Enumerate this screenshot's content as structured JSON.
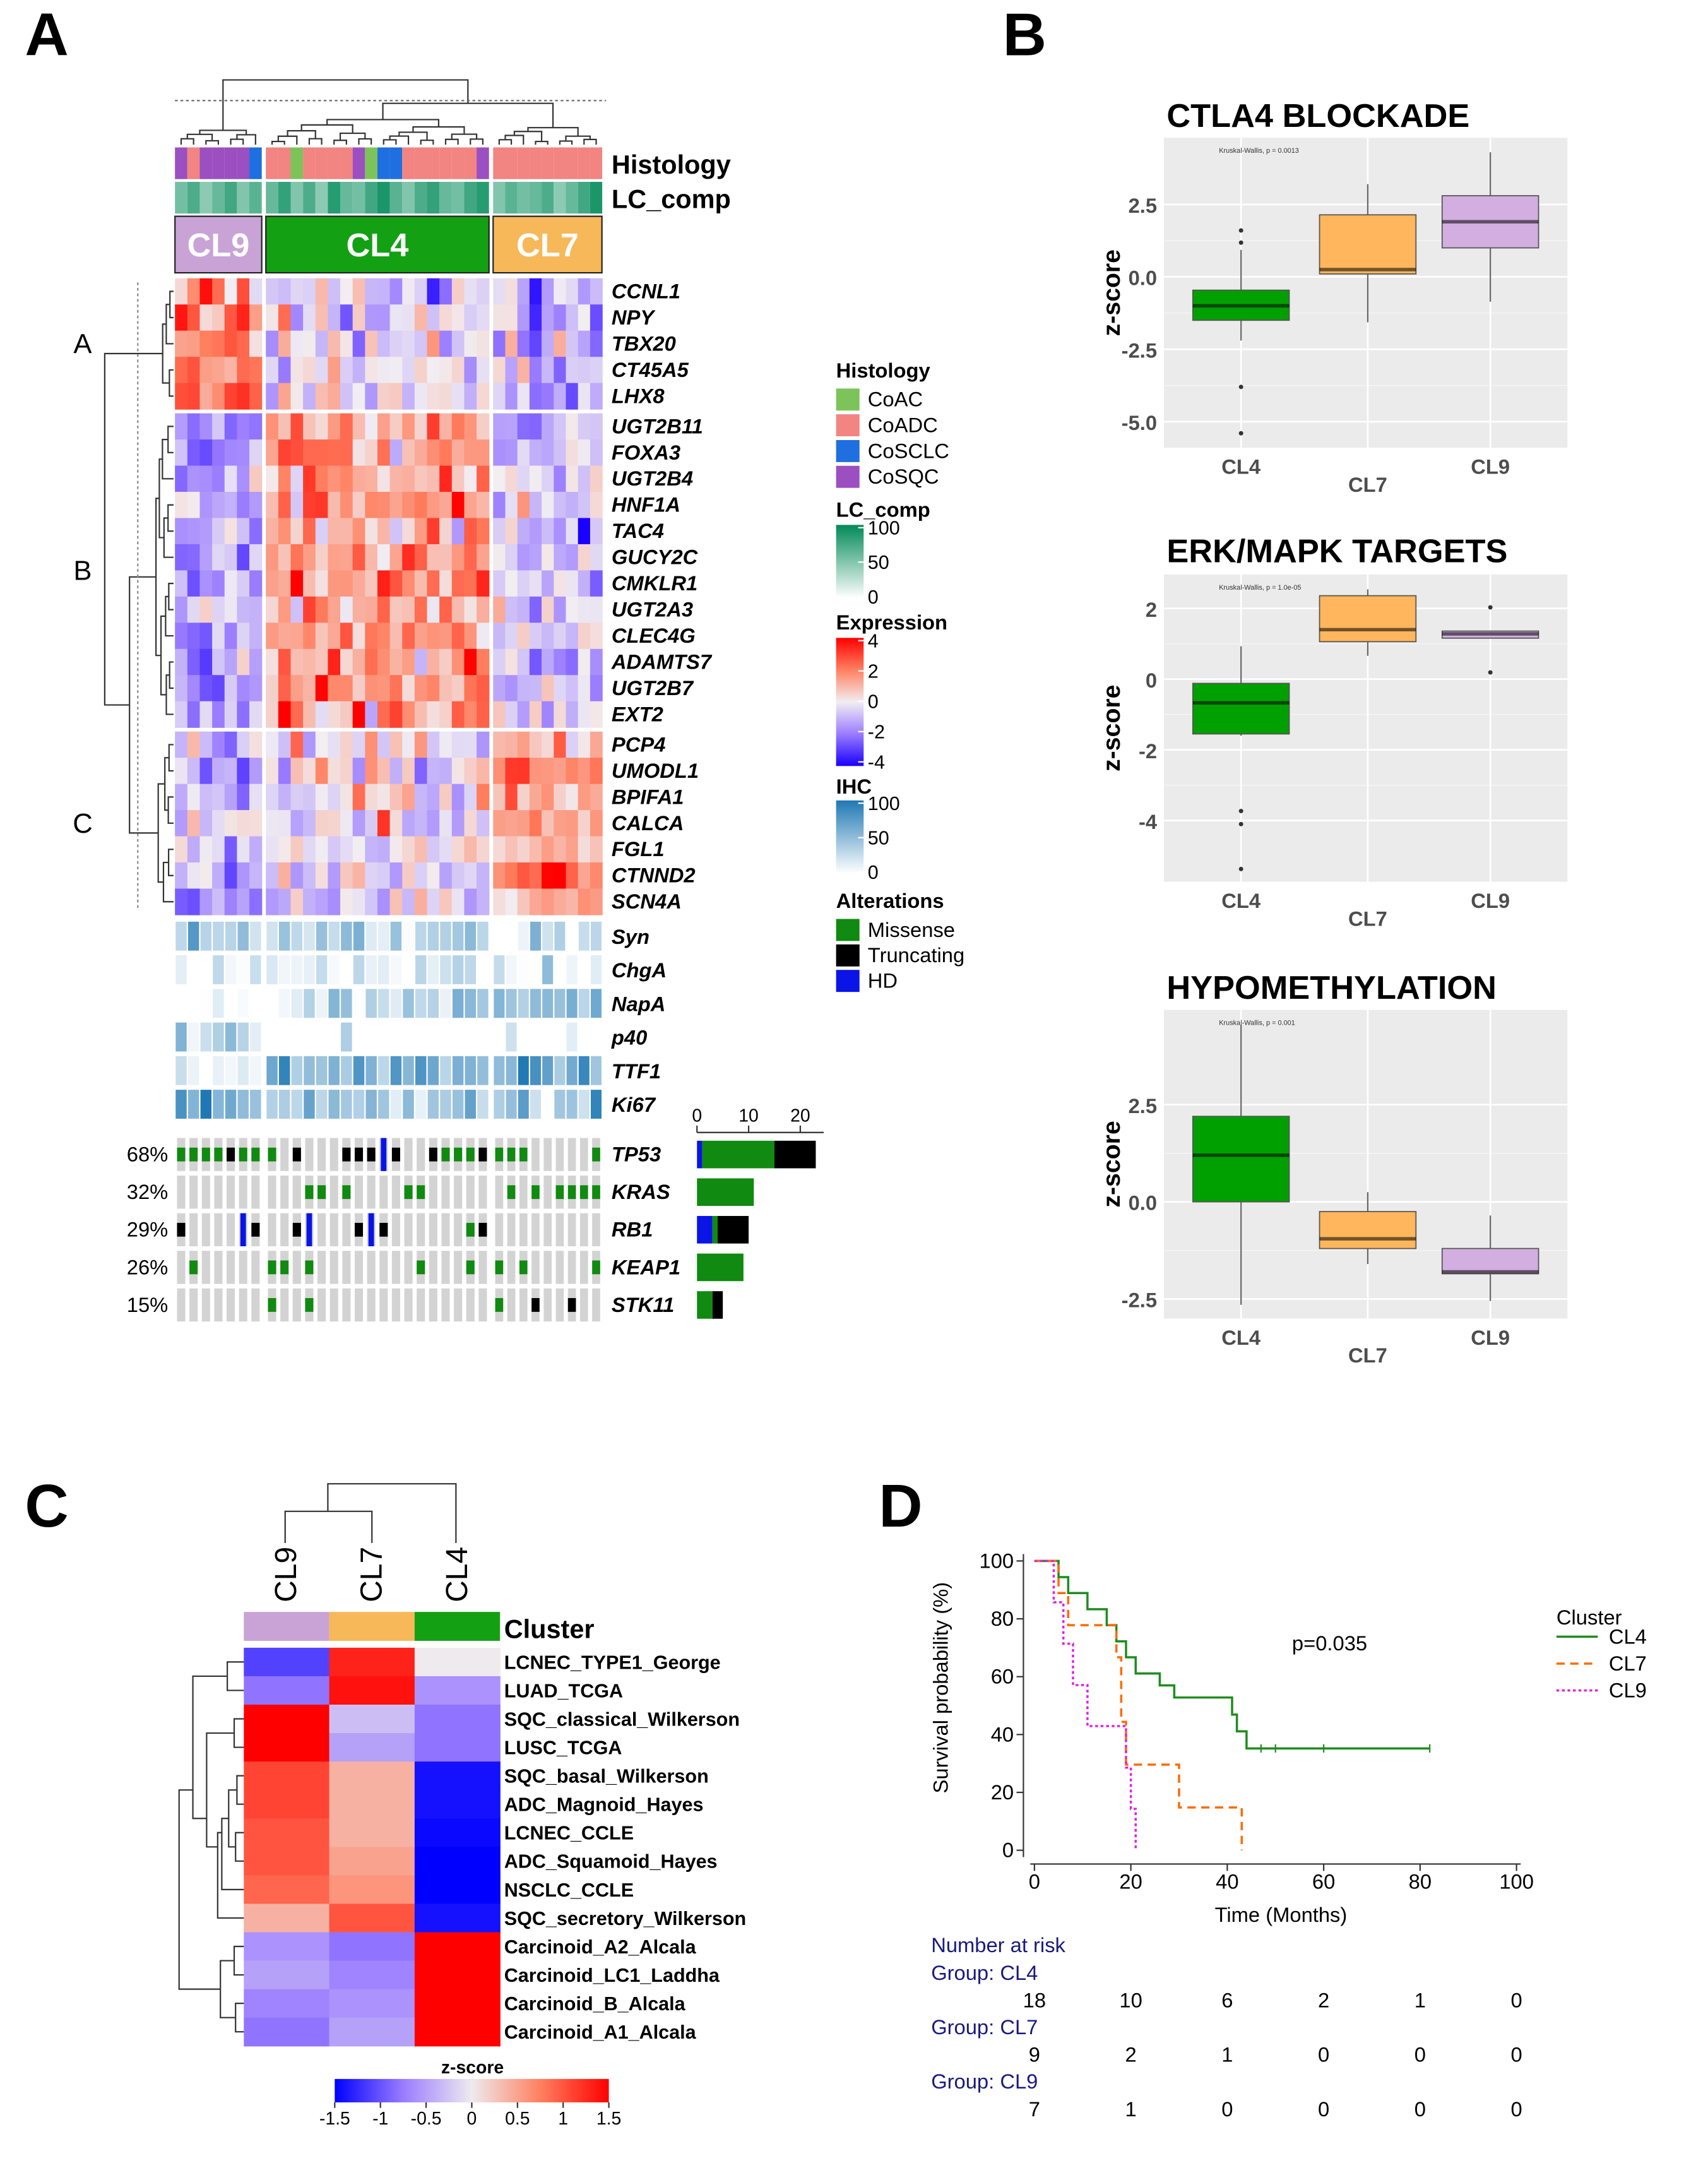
{
  "panel_labels": {
    "a": "A",
    "b": "B",
    "c": "C",
    "d": "D"
  },
  "panelA": {
    "clusters": [
      {
        "name": "CL9",
        "n": 7,
        "color": "#c9a3d6",
        "text_color": "#ffffff"
      },
      {
        "name": "CL4",
        "n": 18,
        "color": "#13a013",
        "text_color": "#ffffff"
      },
      {
        "name": "CL7",
        "n": 9,
        "color": "#f7b85a",
        "text_color": "#ffffff"
      }
    ],
    "annotation_labels": {
      "histology": "Histology",
      "lc_comp": "LC_comp"
    },
    "histology": {
      "CL9": [
        "CoSQC",
        "CoADC",
        "CoSQC",
        "CoSQC",
        "CoSQC",
        "CoSQC",
        "CoSCLC"
      ],
      "CL4": [
        "CoADC",
        "CoADC",
        "CoAC",
        "CoADC",
        "CoADC",
        "CoADC",
        "CoADC",
        "CoSQC",
        "CoAC",
        "CoSCLC",
        "CoSCLC",
        "CoADC",
        "CoADC",
        "CoADC",
        "CoADC",
        "CoADC",
        "CoADC",
        "CoSQC"
      ],
      "CL7": [
        "CoADC",
        "CoADC",
        "CoADC",
        "CoADC",
        "CoADC",
        "CoADC",
        "CoADC",
        "CoADC",
        "CoADC"
      ]
    },
    "lc_comp": {
      "CL9": [
        55,
        70,
        45,
        60,
        75,
        50,
        65
      ],
      "CL4": [
        60,
        80,
        50,
        70,
        45,
        85,
        60,
        55,
        75,
        90,
        65,
        50,
        70,
        80,
        60,
        55,
        75,
        85
      ],
      "CL7": [
        50,
        65,
        55,
        60,
        70,
        45,
        60,
        75,
        90
      ]
    },
    "gene_blocks": [
      {
        "label": "A",
        "genes": [
          "CCNL1",
          "NPY",
          "TBX20",
          "CT45A5",
          "LHX8"
        ],
        "cluster_means": {
          "CL9": 2.0,
          "CL4": -0.3,
          "CL7": -1.0
        }
      },
      {
        "label": "B",
        "genes": [
          "UGT2B11",
          "FOXA3",
          "UGT2B4",
          "HNF1A",
          "TAC4",
          "GUCY2C",
          "CMKLR1",
          "UGT2A3",
          "CLEC4G",
          "ADAMTS7",
          "UGT2B7",
          "EXT2"
        ],
        "cluster_means": {
          "CL9": -1.5,
          "CL4": 1.5,
          "CL7": -0.7
        }
      },
      {
        "label": "C",
        "genes": [
          "PCP4",
          "UMODL1",
          "BPIFA1",
          "CALCA",
          "FGL1",
          "CTNND2",
          "SCN4A"
        ],
        "cluster_means": {
          "CL9": -1.0,
          "CL4": -0.2,
          "CL7": 1.3
        }
      }
    ],
    "ihc": [
      {
        "marker": "Syn",
        "cluster_means": {
          "CL9": 25,
          "CL4": 35,
          "CL7": 20
        }
      },
      {
        "marker": "ChgA",
        "cluster_means": {
          "CL9": 8,
          "CL4": 12,
          "CL7": 8
        }
      },
      {
        "marker": "NapA",
        "cluster_means": {
          "CL9": 0,
          "CL4": 22,
          "CL7": 45
        }
      },
      {
        "marker": "p40",
        "cluster_means": {
          "CL9": 30,
          "CL4": 3,
          "CL7": 0
        }
      },
      {
        "marker": "TTF1",
        "cluster_means": {
          "CL9": 10,
          "CL4": 55,
          "CL7": 70
        }
      },
      {
        "marker": "Ki67",
        "cluster_means": {
          "CL9": 70,
          "CL4": 40,
          "CL7": 40
        }
      }
    ],
    "alteration_codes": {
      "0": "none",
      "1": "Missense",
      "2": "Truncating",
      "3": "HD"
    },
    "alterations": [
      {
        "gene": "TP53",
        "pct": "68%",
        "CL9": [
          1,
          1,
          1,
          1,
          2,
          1,
          1
        ],
        "CL4": [
          1,
          0,
          2,
          0,
          0,
          0,
          2,
          2,
          2,
          3,
          2,
          0,
          0,
          2,
          1,
          1,
          1,
          2
        ],
        "CL7": [
          1,
          1,
          1,
          0,
          0,
          0,
          0,
          0,
          1
        ],
        "counts": {
          "HD": 1,
          "Missense": 14,
          "Truncating": 8
        }
      },
      {
        "gene": "KRAS",
        "pct": "32%",
        "CL9": [
          0,
          0,
          0,
          0,
          0,
          0,
          0
        ],
        "CL4": [
          0,
          0,
          0,
          1,
          1,
          0,
          1,
          0,
          0,
          0,
          0,
          1,
          1,
          0,
          0,
          0,
          0,
          0
        ],
        "CL7": [
          0,
          1,
          0,
          1,
          0,
          1,
          1,
          1,
          1
        ],
        "counts": {
          "HD": 0,
          "Missense": 11,
          "Truncating": 0
        }
      },
      {
        "gene": "RB1",
        "pct": "29%",
        "CL9": [
          2,
          0,
          0,
          0,
          0,
          3,
          2
        ],
        "CL4": [
          0,
          0,
          2,
          3,
          0,
          0,
          0,
          2,
          3,
          2,
          0,
          0,
          0,
          0,
          0,
          0,
          1,
          2
        ],
        "CL7": [
          0,
          0,
          0,
          0,
          0,
          0,
          0,
          0,
          0
        ],
        "counts": {
          "HD": 3,
          "Missense": 1,
          "Truncating": 6
        }
      },
      {
        "gene": "KEAP1",
        "pct": "26%",
        "CL9": [
          0,
          1,
          0,
          0,
          0,
          0,
          0
        ],
        "CL4": [
          1,
          1,
          0,
          1,
          0,
          0,
          0,
          0,
          0,
          0,
          0,
          0,
          1,
          0,
          0,
          0,
          1,
          0
        ],
        "CL7": [
          1,
          0,
          1,
          0,
          0,
          0,
          0,
          0,
          1
        ],
        "counts": {
          "HD": 0,
          "Missense": 9,
          "Truncating": 0
        }
      },
      {
        "gene": "STK11",
        "pct": "15%",
        "CL9": [
          0,
          0,
          0,
          0,
          0,
          0,
          0
        ],
        "CL4": [
          1,
          0,
          0,
          1,
          0,
          0,
          0,
          0,
          0,
          0,
          0,
          0,
          0,
          0,
          0,
          0,
          0,
          0
        ],
        "CL7": [
          1,
          0,
          0,
          2,
          0,
          0,
          2,
          0,
          0
        ],
        "counts": {
          "HD": 0,
          "Missense": 3,
          "Truncating": 2
        }
      }
    ],
    "alteration_axis_ticks": [
      "0",
      "10",
      "20"
    ],
    "legend": {
      "histology_title": "Histology",
      "histology_items": [
        {
          "label": "CoAC",
          "color": "#7cc45a"
        },
        {
          "label": "CoADC",
          "color": "#f28482"
        },
        {
          "label": "CoSCLC",
          "color": "#1f6fe0"
        },
        {
          "label": "CoSQC",
          "color": "#9b4fc0"
        }
      ],
      "lc_comp_title": "LC_comp",
      "lc_comp_ticks": [
        "100",
        "50",
        "0"
      ],
      "lc_comp_color": "#008a58",
      "expression_title": "Expression",
      "expression_ticks": [
        "4",
        "2",
        "0",
        "-2",
        "-4"
      ],
      "ihc_title": "IHC",
      "ihc_ticks": [
        "100",
        "50",
        "0"
      ],
      "ihc_color": "#1f78b4",
      "alterations_title": "Alterations",
      "alteration_items": [
        {
          "label": "Missense",
          "color": "#108a10"
        },
        {
          "label": "Truncating",
          "color": "#000000"
        },
        {
          "label": "HD",
          "color": "#0a14e6"
        }
      ]
    }
  },
  "chart_data": [
    {
      "type": "box",
      "title": "CTLA4 BLOCKADE",
      "annotation": "Kruskal-Wallis, p = 0.0013",
      "ylabel": "z-score",
      "ylim": [
        -5.9,
        4.8
      ],
      "yticks": [
        "2.5",
        "0.0",
        "-2.5",
        "-5.0"
      ],
      "ytick_values": [
        2.5,
        0,
        -2.5,
        -5
      ],
      "categories": [
        "CL4",
        "CL7",
        "CL9"
      ],
      "boxes": [
        {
          "q1": -1.5,
          "median": -1.0,
          "q3": -0.46,
          "whisker_low": -2.2,
          "whisker_high": 0.93,
          "outliers": [
            1.6,
            1.18,
            -3.8,
            -5.4
          ],
          "color": "#00a000"
        },
        {
          "q1": 0.1,
          "median": 0.25,
          "q3": 2.14,
          "whisker_low": -1.57,
          "whisker_high": 3.2,
          "outliers": [],
          "color": "#ffb65c"
        },
        {
          "q1": 1.0,
          "median": 1.9,
          "q3": 2.8,
          "whisker_low": -0.86,
          "whisker_high": 4.3,
          "outliers": [],
          "color": "#d3aee0"
        }
      ]
    },
    {
      "type": "box",
      "title": "ERK/MAPK TARGETS",
      "annotation": "Kruskal-Wallis, p = 1.0e-05",
      "ylabel": "z-score",
      "ylim": [
        -5.73,
        2.96
      ],
      "yticks": [
        "2",
        "0",
        "-2",
        "-4"
      ],
      "ytick_values": [
        2,
        0,
        -2,
        -4
      ],
      "categories": [
        "CL4",
        "CL7",
        "CL9"
      ],
      "boxes": [
        {
          "q1": -1.55,
          "median": -0.67,
          "q3": -0.12,
          "whisker_low": -1.6,
          "whisker_high": 0.93,
          "outliers": [
            -3.73,
            -4.1,
            -5.37
          ],
          "color": "#00a000"
        },
        {
          "q1": 1.06,
          "median": 1.4,
          "q3": 2.36,
          "whisker_low": 0.66,
          "whisker_high": 2.54,
          "outliers": [],
          "color": "#ffb65c"
        },
        {
          "q1": 1.16,
          "median": 1.28,
          "q3": 1.36,
          "whisker_low": 1.16,
          "whisker_high": 1.36,
          "outliers": [
            2.03,
            0.19
          ],
          "color": "#d3aee0"
        }
      ]
    },
    {
      "type": "box",
      "title": "HYPOMETHYLATION",
      "annotation": "Kruskal-Wallis, p = 0.001",
      "ylabel": "z-score",
      "ylim": [
        -3.0,
        4.94
      ],
      "yticks": [
        "2.5",
        "0.0",
        "-2.5"
      ],
      "ytick_values": [
        2.5,
        0,
        -2.5
      ],
      "categories": [
        "CL4",
        "CL7",
        "CL9"
      ],
      "boxes": [
        {
          "q1": 0.0,
          "median": 1.2,
          "q3": 2.2,
          "whisker_low": -2.65,
          "whisker_high": 4.55,
          "outliers": [],
          "color": "#00a000"
        },
        {
          "q1": -1.2,
          "median": -0.95,
          "q3": -0.25,
          "whisker_low": -1.6,
          "whisker_high": 0.25,
          "outliers": [],
          "color": "#ffb65c"
        },
        {
          "q1": -1.85,
          "median": -1.8,
          "q3": -1.2,
          "whisker_low": -2.55,
          "whisker_high": -0.35,
          "outliers": [],
          "color": "#d3aee0"
        }
      ]
    },
    {
      "type": "heatmap",
      "annotation_label": "Cluster",
      "columns": [
        "CL9",
        "CL7",
        "CL4"
      ],
      "column_colors": [
        "#c9a3d6",
        "#f7b85a",
        "#13a013"
      ],
      "rows": [
        "LCNEC_TYPE1_George",
        "LUAD_TCGA",
        "SQC_classical_Wilkerson",
        "LUSC_TCGA",
        "SQC_basal_Wilkerson",
        "ADC_Magnoid_Hayes",
        "LCNEC_CCLE",
        "ADC_Squamoid_Hayes",
        "NSCLC_CCLE",
        "SQC_secretory_Wilkerson",
        "Carcinoid_A2_Alcala",
        "Carcinoid_LC1_Laddha",
        "Carcinoid_B_Alcala",
        "Carcinoid_A1_Alcala"
      ],
      "values": [
        [
          -1.1,
          1.3,
          0.0
        ],
        [
          -0.8,
          1.4,
          -0.6
        ],
        [
          1.5,
          -0.3,
          -0.8
        ],
        [
          1.5,
          -0.5,
          -0.8
        ],
        [
          1.1,
          0.4,
          -1.4
        ],
        [
          1.1,
          0.4,
          -1.4
        ],
        [
          1.0,
          0.4,
          -1.45
        ],
        [
          1.0,
          0.5,
          -1.5
        ],
        [
          0.9,
          0.6,
          -1.5
        ],
        [
          0.4,
          1.0,
          -1.4
        ],
        [
          -0.6,
          -0.8,
          1.5
        ],
        [
          -0.5,
          -0.7,
          1.5
        ],
        [
          -0.7,
          -0.6,
          1.5
        ],
        [
          -0.8,
          -0.5,
          1.5
        ]
      ],
      "colorbar_title": "z-score",
      "colorbar_ticks": [
        "-1.5",
        "-1",
        "-0.5",
        "0",
        "0.5",
        "1",
        "1.5"
      ],
      "colorbar_values": [
        -1.5,
        -1,
        -0.5,
        0,
        0.5,
        1,
        1.5
      ]
    },
    {
      "type": "line",
      "subtype": "kaplan-meier",
      "xlabel": "Time (Months)",
      "ylabel": "Survival probability (%)",
      "xlim": [
        0,
        100
      ],
      "ylim": [
        0,
        100
      ],
      "xticks": [
        "0",
        "20",
        "40",
        "60",
        "80",
        "100"
      ],
      "yticks": [
        "0",
        "20",
        "40",
        "60",
        "80",
        "100"
      ],
      "annotation": "p=0.035",
      "legend_title": "Cluster",
      "legend_position": "right",
      "series": [
        {
          "name": "CL4",
          "color": "#1e8c1e",
          "dash": "solid",
          "end": 82,
          "steps": [
            [
              0,
              100
            ],
            [
              5,
              94.4
            ],
            [
              7,
              88.9
            ],
            [
              11,
              83.3
            ],
            [
              15,
              77.8
            ],
            [
              17,
              72.2
            ],
            [
              19,
              66.7
            ],
            [
              21,
              61.1
            ],
            [
              26,
              57.0
            ],
            [
              29,
              52.8
            ],
            [
              41,
              46.9
            ],
            [
              42,
              41.1
            ],
            [
              44,
              35.2
            ]
          ],
          "censored": [
            47,
            50,
            60,
            82
          ]
        },
        {
          "name": "CL7",
          "color": "#ff6a00",
          "dash": "dashed",
          "end": 43,
          "steps": [
            [
              0,
              100
            ],
            [
              5,
              88.9
            ],
            [
              7,
              77.8
            ],
            [
              17,
              66.7
            ],
            [
              18,
              44.4
            ],
            [
              19,
              29.6
            ],
            [
              30,
              14.8
            ],
            [
              43,
              0
            ]
          ],
          "censored": []
        },
        {
          "name": "CL9",
          "color": "#e020e0",
          "dash": "dotted",
          "end": 21,
          "steps": [
            [
              0,
              100
            ],
            [
              4,
              85.7
            ],
            [
              6,
              71.4
            ],
            [
              8,
              57.1
            ],
            [
              11,
              42.9
            ],
            [
              19,
              28.6
            ],
            [
              20,
              14.3
            ],
            [
              21,
              0
            ]
          ],
          "censored": []
        }
      ],
      "risk_table": {
        "title": "Number at risk",
        "groups": [
          {
            "label": "Group: CL4",
            "values": [
              "18",
              "10",
              "6",
              "2",
              "1",
              "0"
            ]
          },
          {
            "label": "Group: CL7",
            "values": [
              "9",
              "2",
              "1",
              "0",
              "0",
              "0"
            ]
          },
          {
            "label": "Group: CL9",
            "values": [
              "7",
              "1",
              "0",
              "0",
              "0",
              "0"
            ]
          }
        ]
      }
    }
  ]
}
